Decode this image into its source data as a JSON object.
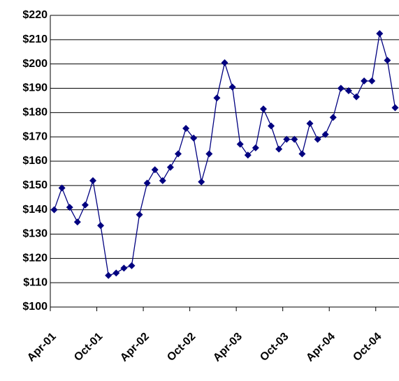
{
  "chart_data": {
    "type": "line",
    "categories": [
      "Apr-01",
      null,
      null,
      null,
      null,
      null,
      "Oct-01",
      null,
      null,
      null,
      null,
      null,
      "Apr-02",
      null,
      null,
      null,
      null,
      null,
      "Oct-02",
      null,
      null,
      null,
      null,
      null,
      "Apr-03",
      null,
      null,
      null,
      null,
      null,
      "Oct-03",
      null,
      null,
      null,
      null,
      null,
      "Apr-04",
      null,
      null,
      null,
      null,
      null,
      "Oct-04",
      null,
      null
    ],
    "values": [
      140,
      149,
      141,
      135,
      142,
      152,
      133.5,
      113,
      114,
      116,
      117,
      138,
      151,
      156.5,
      152,
      157.5,
      163,
      173.5,
      169.5,
      151.5,
      163,
      186,
      200.5,
      190.5,
      167,
      162.5,
      165.5,
      181.5,
      174.5,
      165,
      169,
      169,
      163,
      175.5,
      169,
      171,
      178,
      190,
      189,
      186.5,
      193,
      193,
      212.5,
      201.5,
      182
    ],
    "color": "#000080",
    "ylim": [
      100,
      220
    ],
    "yticks": [
      {
        "value": 100,
        "label": "$100"
      },
      {
        "value": 110,
        "label": "$110"
      },
      {
        "value": 120,
        "label": "$120"
      },
      {
        "value": 130,
        "label": "$130"
      },
      {
        "value": 140,
        "label": "$140"
      },
      {
        "value": 150,
        "label": "$150"
      },
      {
        "value": 160,
        "label": "$160"
      },
      {
        "value": 170,
        "label": "$170"
      },
      {
        "value": 180,
        "label": "$180"
      },
      {
        "value": 190,
        "label": "$190"
      },
      {
        "value": 200,
        "label": "$200"
      },
      {
        "value": 210,
        "label": "$210"
      },
      {
        "value": 220,
        "label": "$220"
      }
    ],
    "grid": true
  }
}
